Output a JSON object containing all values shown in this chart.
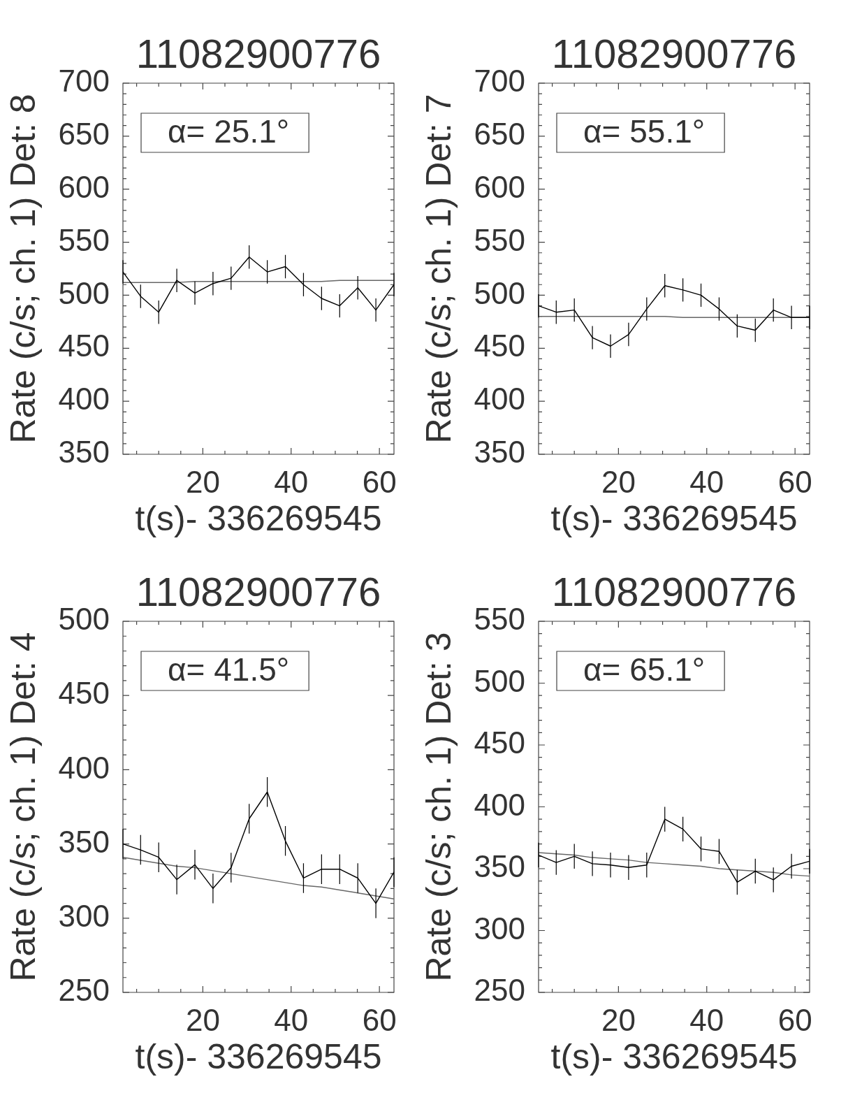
{
  "chart_data": [
    {
      "type": "line",
      "title": "11082900776",
      "xlabel": "t(s)- 336269545",
      "ylabel": "Rate (c/s; ch. 1) Det: 8",
      "annotations": [
        "α= 25.1°"
      ],
      "xlim": [
        1.9,
        63.3
      ],
      "ylim": [
        350,
        700
      ],
      "xticks": [
        {
          "value": 5,
          "label": null
        },
        {
          "value": 10,
          "label": null
        },
        {
          "value": 15,
          "label": null
        },
        20,
        {
          "value": 25,
          "label": null
        },
        {
          "value": 30,
          "label": null
        },
        {
          "value": 35,
          "label": null
        },
        40,
        {
          "value": 45,
          "label": null
        },
        {
          "value": 50,
          "label": null
        },
        {
          "value": 55,
          "label": null
        },
        60
      ],
      "yticks": [
        350,
        {
          "value": 360,
          "label": null
        },
        {
          "value": 370,
          "label": null
        },
        {
          "value": 380,
          "label": null
        },
        {
          "value": 390,
          "label": null
        },
        400,
        {
          "value": 410,
          "label": null
        },
        {
          "value": 420,
          "label": null
        },
        {
          "value": 430,
          "label": null
        },
        {
          "value": 440,
          "label": null
        },
        450,
        {
          "value": 460,
          "label": null
        },
        {
          "value": 470,
          "label": null
        },
        {
          "value": 480,
          "label": null
        },
        {
          "value": 490,
          "label": null
        },
        500,
        {
          "value": 510,
          "label": null
        },
        {
          "value": 520,
          "label": null
        },
        {
          "value": 530,
          "label": null
        },
        {
          "value": 540,
          "label": null
        },
        550,
        {
          "value": 560,
          "label": null
        },
        {
          "value": 570,
          "label": null
        },
        {
          "value": 580,
          "label": null
        },
        {
          "value": 590,
          "label": null
        },
        600,
        {
          "value": 610,
          "label": null
        },
        {
          "value": 620,
          "label": null
        },
        {
          "value": 630,
          "label": null
        },
        {
          "value": 640,
          "label": null
        },
        650,
        {
          "value": 660,
          "label": null
        },
        {
          "value": 670,
          "label": null
        },
        {
          "value": 680,
          "label": null
        },
        {
          "value": 690,
          "label": null
        },
        700
      ],
      "x": [
        1.9,
        5.9,
        10.0,
        14.1,
        18.2,
        22.3,
        26.4,
        30.5,
        34.6,
        38.7,
        42.8,
        46.9,
        51.0,
        55.1,
        59.2,
        63.3
      ],
      "series": [
        {
          "color": "#000000",
          "values": [
            522,
            499,
            484,
            514,
            502,
            511,
            516,
            536,
            522,
            527,
            510,
            497,
            490,
            507,
            486,
            510
          ],
          "errors": [
            11,
            11,
            11,
            11,
            11,
            11,
            11,
            11,
            11,
            11,
            11,
            11,
            11,
            11,
            11,
            11
          ]
        },
        {
          "type": "line",
          "color": "#666666",
          "values": [
            512,
            512,
            512,
            512,
            513,
            513,
            513,
            513,
            513,
            513,
            513,
            513,
            514,
            514,
            514,
            514
          ]
        }
      ]
    },
    {
      "type": "line",
      "title": "11082900776",
      "xlabel": "t(s)- 336269545",
      "ylabel": "Rate (c/s; ch. 1) Det: 7",
      "annotations": [
        "α= 55.1°"
      ],
      "xlim": [
        1.9,
        63.3
      ],
      "ylim": [
        350,
        700
      ],
      "xticks": [
        {
          "value": 5,
          "label": null
        },
        {
          "value": 10,
          "label": null
        },
        {
          "value": 15,
          "label": null
        },
        20,
        {
          "value": 25,
          "label": null
        },
        {
          "value": 30,
          "label": null
        },
        {
          "value": 35,
          "label": null
        },
        40,
        {
          "value": 45,
          "label": null
        },
        {
          "value": 50,
          "label": null
        },
        {
          "value": 55,
          "label": null
        },
        60
      ],
      "yticks": [
        350,
        {
          "value": 360,
          "label": null
        },
        {
          "value": 370,
          "label": null
        },
        {
          "value": 380,
          "label": null
        },
        {
          "value": 390,
          "label": null
        },
        400,
        {
          "value": 410,
          "label": null
        },
        {
          "value": 420,
          "label": null
        },
        {
          "value": 430,
          "label": null
        },
        {
          "value": 440,
          "label": null
        },
        450,
        {
          "value": 460,
          "label": null
        },
        {
          "value": 470,
          "label": null
        },
        {
          "value": 480,
          "label": null
        },
        {
          "value": 490,
          "label": null
        },
        500,
        {
          "value": 510,
          "label": null
        },
        {
          "value": 520,
          "label": null
        },
        {
          "value": 530,
          "label": null
        },
        {
          "value": 540,
          "label": null
        },
        550,
        {
          "value": 560,
          "label": null
        },
        {
          "value": 570,
          "label": null
        },
        {
          "value": 580,
          "label": null
        },
        {
          "value": 590,
          "label": null
        },
        600,
        {
          "value": 610,
          "label": null
        },
        {
          "value": 620,
          "label": null
        },
        {
          "value": 630,
          "label": null
        },
        {
          "value": 640,
          "label": null
        },
        650,
        {
          "value": 660,
          "label": null
        },
        {
          "value": 670,
          "label": null
        },
        {
          "value": 680,
          "label": null
        },
        {
          "value": 690,
          "label": null
        },
        700
      ],
      "x": [
        1.9,
        5.9,
        10.0,
        14.1,
        18.2,
        22.3,
        26.4,
        30.5,
        34.6,
        38.7,
        42.8,
        46.9,
        51.0,
        55.1,
        59.2,
        63.3
      ],
      "series": [
        {
          "color": "#000000",
          "values": [
            490,
            484,
            486,
            460,
            452,
            463,
            487,
            509,
            505,
            500,
            487,
            471,
            467,
            486,
            479,
            479
          ],
          "errors": [
            11,
            11,
            11,
            11,
            11,
            11,
            11,
            11,
            11,
            11,
            11,
            11,
            11,
            11,
            11,
            11
          ]
        },
        {
          "type": "line",
          "color": "#666666",
          "values": [
            480,
            480,
            480,
            480,
            480,
            480,
            480,
            480,
            479,
            479,
            479,
            479,
            479,
            479,
            479,
            479
          ]
        }
      ]
    },
    {
      "type": "line",
      "title": "11082900776",
      "xlabel": "t(s)- 336269545",
      "ylabel": "Rate (c/s; ch. 1) Det: 4",
      "annotations": [
        "α= 41.5°"
      ],
      "xlim": [
        1.9,
        63.3
      ],
      "ylim": [
        250,
        500
      ],
      "xticks": [
        {
          "value": 5,
          "label": null
        },
        {
          "value": 10,
          "label": null
        },
        {
          "value": 15,
          "label": null
        },
        20,
        {
          "value": 25,
          "label": null
        },
        {
          "value": 30,
          "label": null
        },
        {
          "value": 35,
          "label": null
        },
        40,
        {
          "value": 45,
          "label": null
        },
        {
          "value": 50,
          "label": null
        },
        {
          "value": 55,
          "label": null
        },
        60
      ],
      "yticks": [
        250,
        {
          "value": 260,
          "label": null
        },
        {
          "value": 270,
          "label": null
        },
        {
          "value": 280,
          "label": null
        },
        {
          "value": 290,
          "label": null
        },
        300,
        {
          "value": 310,
          "label": null
        },
        {
          "value": 320,
          "label": null
        },
        {
          "value": 330,
          "label": null
        },
        {
          "value": 340,
          "label": null
        },
        350,
        {
          "value": 360,
          "label": null
        },
        {
          "value": 370,
          "label": null
        },
        {
          "value": 380,
          "label": null
        },
        {
          "value": 390,
          "label": null
        },
        400,
        {
          "value": 410,
          "label": null
        },
        {
          "value": 420,
          "label": null
        },
        {
          "value": 430,
          "label": null
        },
        {
          "value": 440,
          "label": null
        },
        450,
        {
          "value": 460,
          "label": null
        },
        {
          "value": 470,
          "label": null
        },
        {
          "value": 480,
          "label": null
        },
        {
          "value": 490,
          "label": null
        },
        500
      ],
      "x": [
        1.9,
        5.9,
        10.0,
        14.1,
        18.2,
        22.3,
        26.4,
        30.5,
        34.6,
        38.7,
        42.8,
        46.9,
        51.0,
        55.1,
        59.2,
        63.3
      ],
      "series": [
        {
          "color": "#000000",
          "values": [
            350,
            346,
            341,
            326,
            336,
            320,
            334,
            367,
            385,
            352,
            327,
            333,
            333,
            327,
            310,
            331
          ],
          "errors": [
            10,
            10,
            10,
            10,
            10,
            10,
            10,
            10,
            10,
            10,
            10,
            10,
            10,
            10,
            10,
            10
          ]
        },
        {
          "type": "line",
          "color": "#666666",
          "values": [
            341,
            339,
            337,
            335,
            334,
            332,
            330,
            328,
            326,
            324,
            322,
            321,
            319,
            317,
            315,
            313
          ]
        }
      ]
    },
    {
      "type": "line",
      "title": "11082900776",
      "xlabel": "t(s)- 336269545",
      "ylabel": "Rate (c/s; ch. 1) Det: 3",
      "annotations": [
        "α= 65.1°"
      ],
      "xlim": [
        1.9,
        63.3
      ],
      "ylim": [
        250,
        550
      ],
      "xticks": [
        {
          "value": 5,
          "label": null
        },
        {
          "value": 10,
          "label": null
        },
        {
          "value": 15,
          "label": null
        },
        20,
        {
          "value": 25,
          "label": null
        },
        {
          "value": 30,
          "label": null
        },
        {
          "value": 35,
          "label": null
        },
        40,
        {
          "value": 45,
          "label": null
        },
        {
          "value": 50,
          "label": null
        },
        {
          "value": 55,
          "label": null
        },
        60
      ],
      "yticks": [
        250,
        {
          "value": 260,
          "label": null
        },
        {
          "value": 270,
          "label": null
        },
        {
          "value": 280,
          "label": null
        },
        {
          "value": 290,
          "label": null
        },
        300,
        {
          "value": 310,
          "label": null
        },
        {
          "value": 320,
          "label": null
        },
        {
          "value": 330,
          "label": null
        },
        {
          "value": 340,
          "label": null
        },
        350,
        {
          "value": 360,
          "label": null
        },
        {
          "value": 370,
          "label": null
        },
        {
          "value": 380,
          "label": null
        },
        {
          "value": 390,
          "label": null
        },
        400,
        {
          "value": 410,
          "label": null
        },
        {
          "value": 420,
          "label": null
        },
        {
          "value": 430,
          "label": null
        },
        {
          "value": 440,
          "label": null
        },
        450,
        {
          "value": 460,
          "label": null
        },
        {
          "value": 470,
          "label": null
        },
        {
          "value": 480,
          "label": null
        },
        {
          "value": 490,
          "label": null
        },
        500,
        {
          "value": 510,
          "label": null
        },
        {
          "value": 520,
          "label": null
        },
        {
          "value": 530,
          "label": null
        },
        {
          "value": 540,
          "label": null
        },
        550
      ],
      "x": [
        1.9,
        5.9,
        10.0,
        14.1,
        18.2,
        22.3,
        26.4,
        30.5,
        34.6,
        38.7,
        42.8,
        46.9,
        51.0,
        55.1,
        59.2,
        63.3
      ],
      "series": [
        {
          "color": "#000000",
          "values": [
            361,
            355,
            360,
            354,
            353,
            351,
            353,
            390,
            382,
            366,
            364,
            339,
            348,
            341,
            352,
            356
          ],
          "errors": [
            10,
            10,
            10,
            10,
            10,
            10,
            10,
            10,
            10,
            10,
            10,
            10,
            10,
            10,
            10,
            10
          ]
        },
        {
          "type": "line",
          "color": "#666666",
          "values": [
            363,
            362,
            361,
            359,
            358,
            357,
            355,
            354,
            353,
            352,
            350,
            349,
            348,
            347,
            345,
            344
          ]
        }
      ]
    }
  ]
}
